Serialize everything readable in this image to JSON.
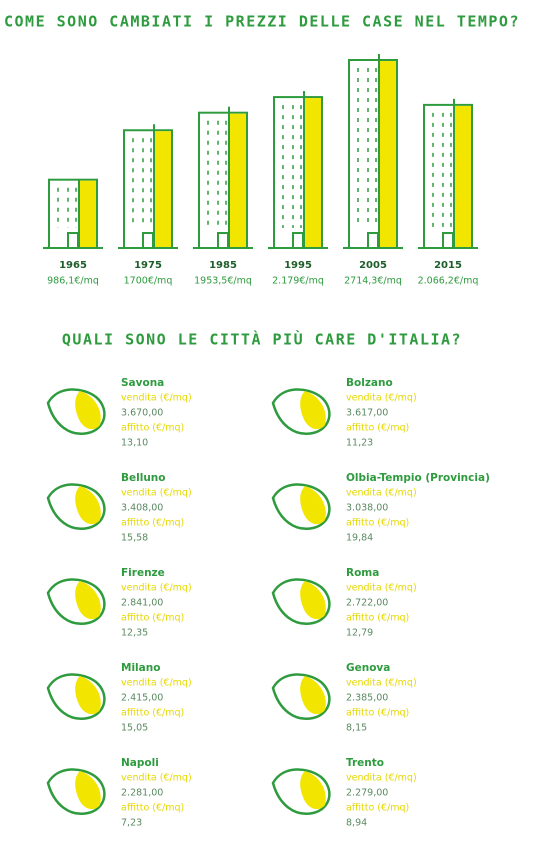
{
  "chart_data": {
    "type": "bar",
    "title": "COME SONO CAMBIATI I PREZZI DELLE CASE NEL TEMPO?",
    "categories": [
      "1965",
      "1975",
      "1985",
      "1995",
      "2005",
      "2015"
    ],
    "values": [
      986.1,
      1700,
      1953.5,
      2179,
      2714.3,
      2066.2
    ],
    "value_labels": [
      "986,1€/mq",
      "1700€/mq",
      "1953,5€/mq",
      "2.179€/mq",
      "2714,3€/mq",
      "2.066,2€/mq"
    ],
    "color": "#f2e500",
    "outline_color": "#2e9b3e"
  },
  "cities_section": {
    "title": "QUALI SONO LE CITTÀ PIÙ CARE D'ITALIA?",
    "sale_label": "vendita (€/mq)",
    "rent_label": "affitto (€/mq)",
    "cities": [
      {
        "name": "Savona",
        "sale": "3.670,00",
        "rent": "13,10"
      },
      {
        "name": "Bolzano",
        "sale": "3.617,00",
        "rent": "11,23"
      },
      {
        "name": "Belluno",
        "sale": "3.408,00",
        "rent": "15,58"
      },
      {
        "name": "Olbia-Tempio (Provincia)",
        "sale": "3.038,00",
        "rent": "19,84"
      },
      {
        "name": "Firenze",
        "sale": "2.841,00",
        "rent": "12,35"
      },
      {
        "name": "Roma",
        "sale": "2.722,00",
        "rent": "12,79"
      },
      {
        "name": "Milano",
        "sale": "2.415,00",
        "rent": "15,05"
      },
      {
        "name": "Genova",
        "sale": "2.385,00",
        "rent": "8,15"
      },
      {
        "name": "Napoli",
        "sale": "2.281,00",
        "rent": "7,23"
      },
      {
        "name": "Trento",
        "sale": "2.279,00",
        "rent": "8,94"
      }
    ]
  }
}
